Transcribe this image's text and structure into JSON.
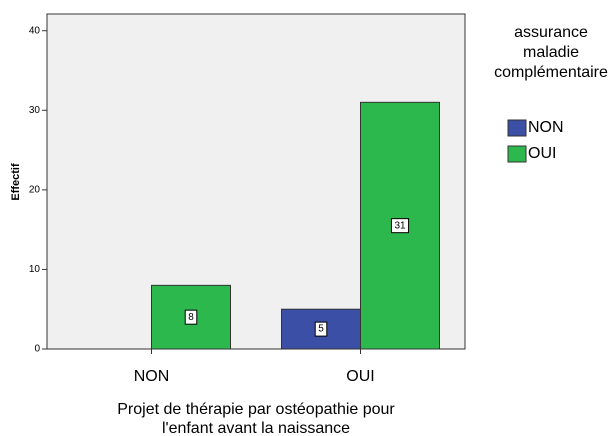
{
  "chart_data": {
    "type": "bar",
    "categories": [
      "NON",
      "OUI"
    ],
    "series": [
      {
        "name": "NON",
        "color": "#3b4fa6",
        "values": [
          null,
          5
        ]
      },
      {
        "name": "OUI",
        "color": "#2db84d",
        "values": [
          8,
          31
        ]
      }
    ],
    "ylim": [
      0,
      42.1
    ],
    "yticks": [
      0,
      10,
      20,
      30,
      40
    ],
    "y_label": "Effectif",
    "x_label": [
      "Projet de thérapie par ostéopathie pour",
      "l'enfant avant la naissance"
    ],
    "legend_title": [
      "assurance",
      "maladie",
      "complémentaire"
    ],
    "legend": "right"
  }
}
